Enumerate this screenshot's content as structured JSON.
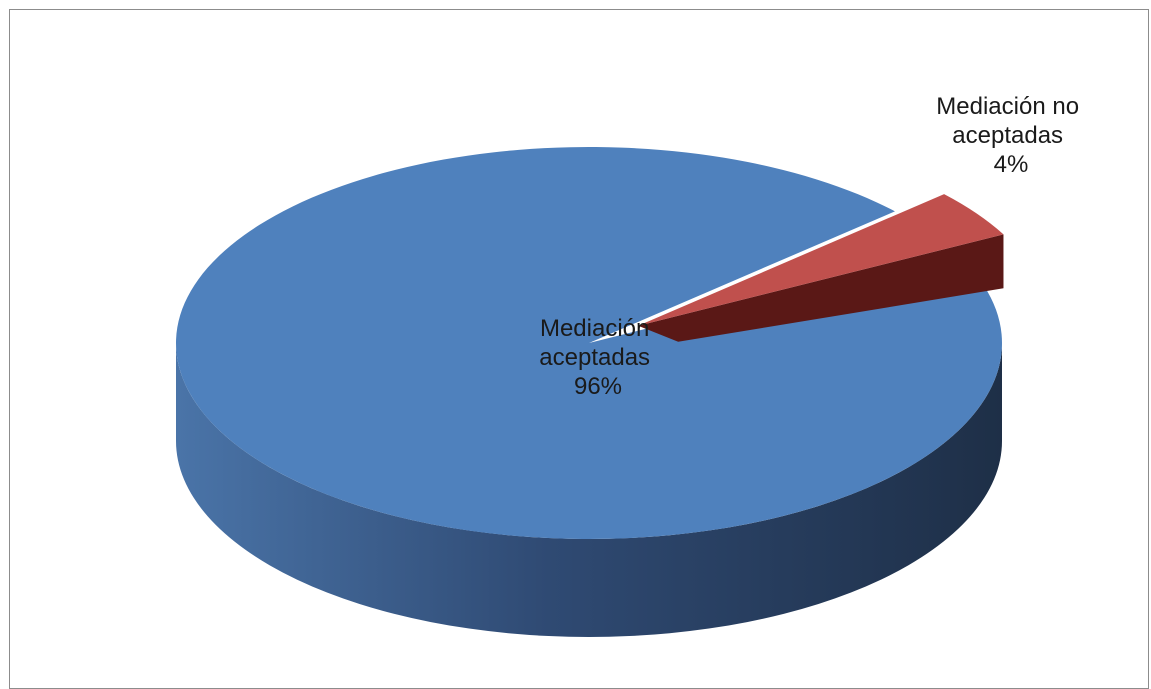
{
  "chart_data": {
    "type": "pie",
    "title": "",
    "legend": "none",
    "slices": [
      {
        "label_lines": [
          "Mediación",
          "aceptadas"
        ],
        "percent_label": "96%",
        "value": 96,
        "color": "#4f81bd",
        "side_light": "#4a74a8",
        "side_dark": "#1e2f47"
      },
      {
        "label_lines": [
          "Mediación no",
          "aceptadas"
        ],
        "percent_label": "4%",
        "value": 4,
        "color": "#c0504d",
        "side_light": "#8e2c2a",
        "side_dark": "#5a1816"
      }
    ]
  }
}
